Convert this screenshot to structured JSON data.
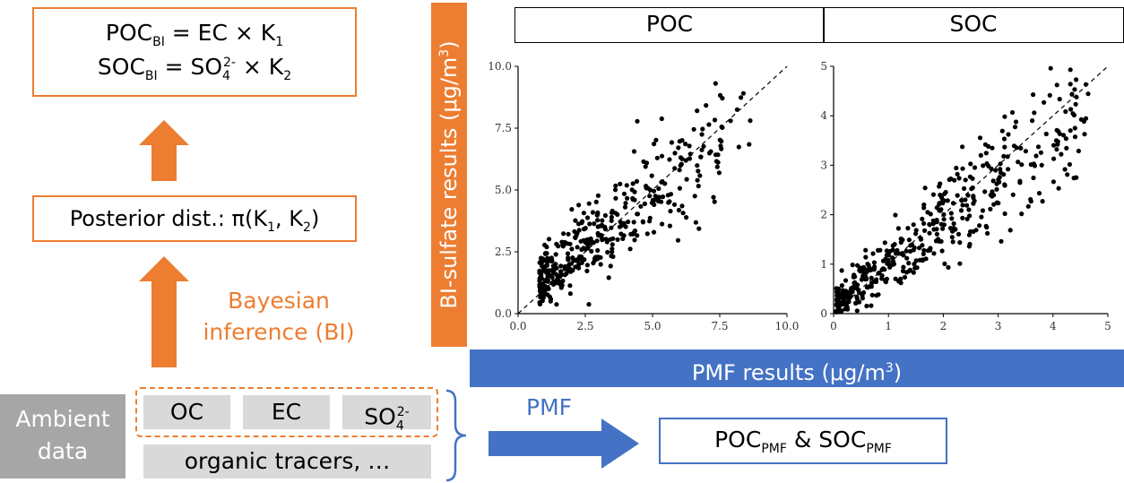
{
  "equations": {
    "line1": {
      "lhs": "POC",
      "lhs_sub": "BI",
      "rhs_a": "= EC ×",
      "rhs_b": "K",
      "rhs_sub": "1"
    },
    "line2": {
      "lhs": "SOC",
      "lhs_sub": "BI",
      "rhs_a": "= SO",
      "rhs_sub1": "4",
      "rhs_sup": "2-",
      "rhs_b": "× K",
      "rhs_sub": "2"
    }
  },
  "posterior": {
    "text_a": "Posterior dist.: π(K",
    "sub1": "1",
    "text_b": ", K",
    "sub2": "2",
    "text_c": ")"
  },
  "bayesian": {
    "line1": "Bayesian",
    "line2": "inference (BI)"
  },
  "ambient": {
    "line1": "Ambient",
    "line2": "data"
  },
  "species": {
    "oc": "OC",
    "ec": "EC",
    "so4": "SO",
    "so4_sub": "4",
    "so4_sup": "2-",
    "tracers": "organic tracers, …"
  },
  "pmf": {
    "label": "PMF",
    "result_a": "POC",
    "result_sub_a": "PMF",
    "result_amp": " & SOC",
    "result_sub_b": "PMF"
  },
  "yaxis_banner": {
    "text": "BI-sulfate results (μg/m",
    "sup": "3",
    "tail": ")"
  },
  "xaxis_banner": {
    "text": "PMF results (μg/m",
    "sup": "3",
    "tail": ")"
  },
  "colors": {
    "orange": "#ed7d31",
    "blue": "#4472c4",
    "gray": "#d9d9d9",
    "ambient_gray": "#a6a6a6"
  },
  "chart_data": [
    {
      "type": "scatter",
      "title": "POC",
      "xlim": [
        0,
        10
      ],
      "ylim": [
        0,
        10
      ],
      "xticks": [
        "0.0",
        "2.5",
        "5.0",
        "7.5",
        "10.0"
      ],
      "yticks": [
        "0.0",
        "2.5",
        "5.0",
        "7.5",
        "10.0"
      ],
      "reference_line": "1:1 dashed",
      "n_points_estimated": 400
    },
    {
      "type": "scatter",
      "title": "SOC",
      "xlim": [
        0,
        5
      ],
      "ylim": [
        0,
        5
      ],
      "xticks": [
        "0",
        "1",
        "2",
        "3",
        "4",
        "5"
      ],
      "yticks": [
        "0",
        "1",
        "2",
        "3",
        "4",
        "5"
      ],
      "reference_line": "1:1 dashed",
      "n_points_estimated": 450
    }
  ]
}
